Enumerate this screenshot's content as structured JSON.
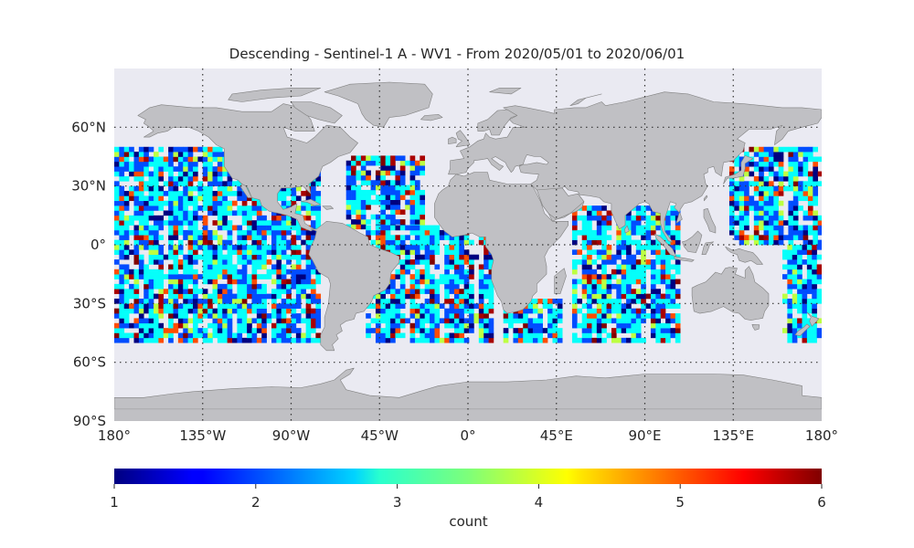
{
  "title": "Descending - Sentinel-1 A - WV1 - From 2020/05/01 to 2020/06/01",
  "colors": {
    "ocean_background": "#eaeaf2",
    "land": "#c0c0c4",
    "coastline": "#808080",
    "gridline": "#333333",
    "text": "#262626"
  },
  "chart_data": {
    "type": "heatmap",
    "projection": "plate-carree",
    "xlim": [
      -180,
      180
    ],
    "ylim": [
      -90,
      90
    ],
    "grid": true,
    "lon_ticks": [
      {
        "value": -180,
        "label": "180°"
      },
      {
        "value": -135,
        "label": "135°W"
      },
      {
        "value": -90,
        "label": "90°W"
      },
      {
        "value": -45,
        "label": "45°W"
      },
      {
        "value": 0,
        "label": "0°"
      },
      {
        "value": 45,
        "label": "45°E"
      },
      {
        "value": 90,
        "label": "90°E"
      },
      {
        "value": 135,
        "label": "135°E"
      },
      {
        "value": 180,
        "label": "180°"
      }
    ],
    "lat_ticks": [
      {
        "value": 60,
        "label": "60°N"
      },
      {
        "value": 30,
        "label": "30°N"
      },
      {
        "value": 0,
        "label": "0°"
      },
      {
        "value": -30,
        "label": "30°S"
      },
      {
        "value": -60,
        "label": "60°S"
      },
      {
        "value": -90,
        "label": "90°S"
      }
    ],
    "colorbar": {
      "label": "count",
      "colormap": "jet",
      "vmin": 1,
      "vmax": 6,
      "ticks": [
        "1",
        "2",
        "3",
        "4",
        "5",
        "6"
      ]
    },
    "data_lat_range": [
      -50,
      50
    ],
    "coverage_regions": [
      {
        "name": "pacific",
        "lon": [
          -180,
          -75
        ],
        "lat": [
          -50,
          50
        ]
      },
      {
        "name": "north-atlantic",
        "lon": [
          -62,
          -22
        ],
        "lat": [
          8,
          45
        ]
      },
      {
        "name": "south-atlantic",
        "lon": [
          -52,
          12
        ],
        "lat": [
          -50,
          8
        ]
      },
      {
        "name": "indian-west",
        "lon": [
          18,
          48
        ],
        "lat": [
          -50,
          -28
        ]
      },
      {
        "name": "indian",
        "lon": [
          53,
          108
        ],
        "lat": [
          -50,
          20
        ]
      },
      {
        "name": "west-pacific-north",
        "lon": [
          133,
          180
        ],
        "lat": [
          0,
          50
        ]
      },
      {
        "name": "west-pacific-south",
        "lon": [
          160,
          180
        ],
        "lat": [
          -50,
          0
        ]
      }
    ]
  }
}
